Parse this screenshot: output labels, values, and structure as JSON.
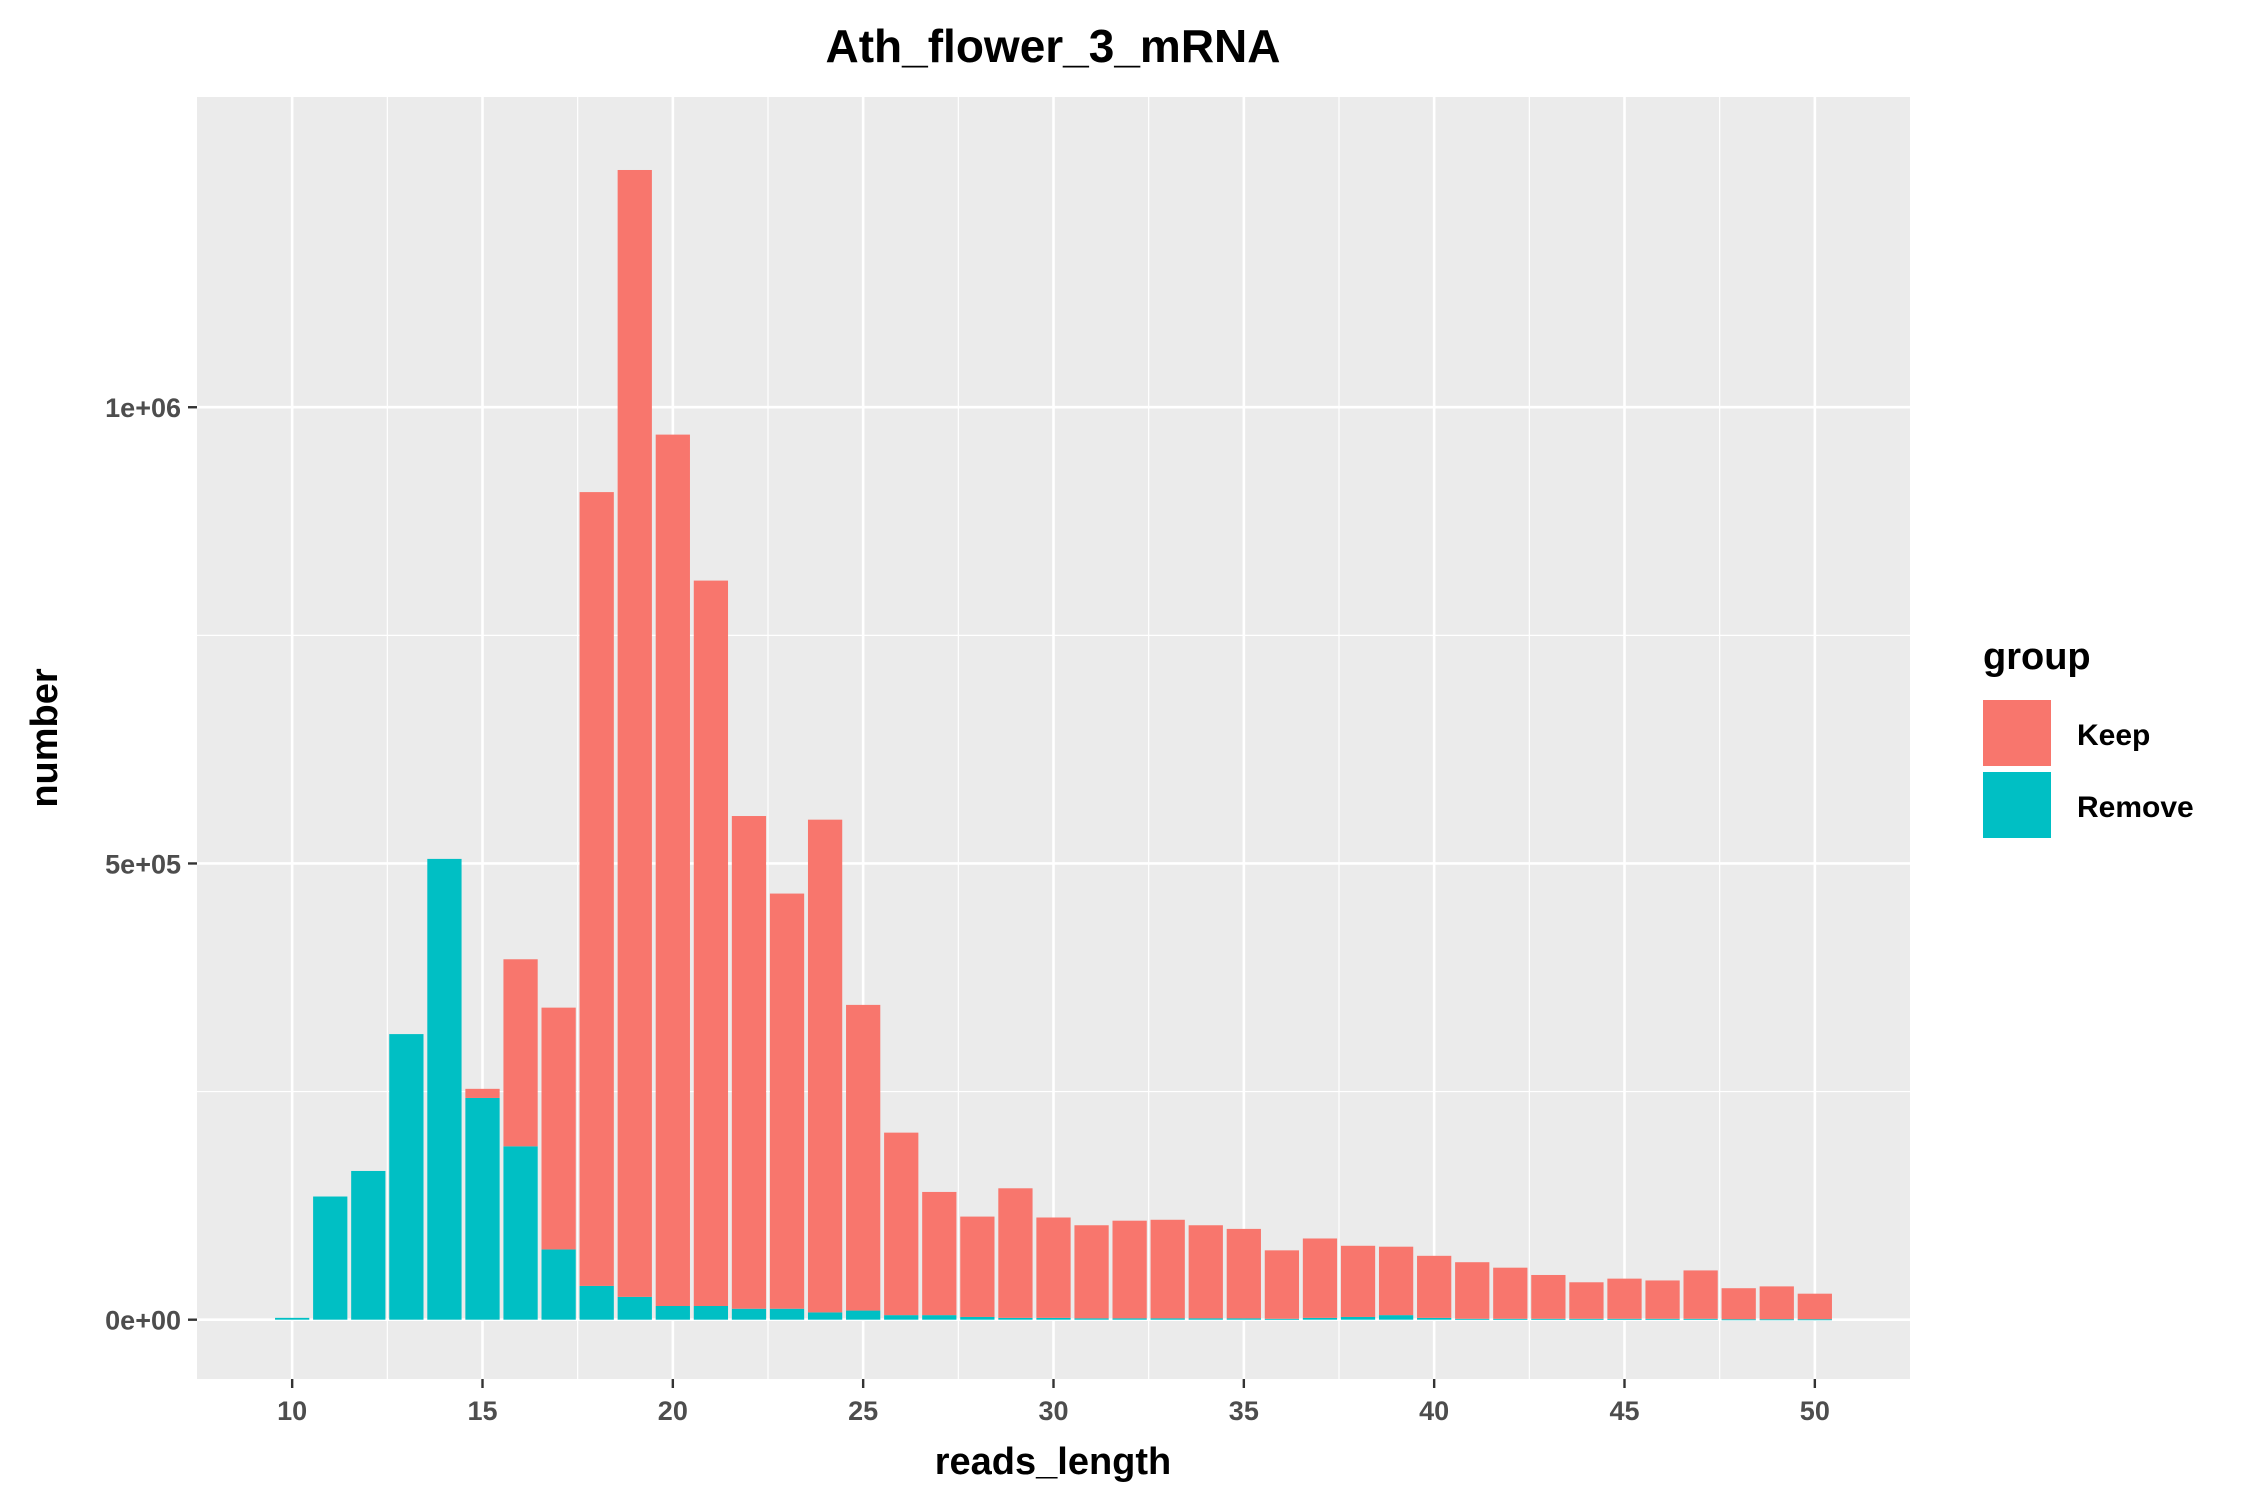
{
  "chart_data": {
    "type": "bar",
    "stacked": true,
    "title": "Ath_flower_3_mRNA",
    "xlabel": "reads_length",
    "ylabel": "number",
    "x": [
      10,
      11,
      12,
      13,
      14,
      15,
      16,
      17,
      18,
      19,
      20,
      21,
      22,
      23,
      24,
      25,
      26,
      27,
      28,
      29,
      30,
      31,
      32,
      33,
      34,
      35,
      36,
      37,
      38,
      39,
      40,
      41,
      42,
      43,
      44,
      45,
      46,
      47,
      48,
      49,
      50
    ],
    "xlim": [
      7.5,
      52.5
    ],
    "ylim": [
      -65000,
      1340000
    ],
    "x_ticks": [
      10,
      15,
      20,
      25,
      30,
      35,
      40,
      45,
      50
    ],
    "x_tick_labels": [
      "10",
      "15",
      "20",
      "25",
      "30",
      "35",
      "40",
      "45",
      "50"
    ],
    "y_ticks": [
      0,
      500000,
      1000000
    ],
    "y_tick_labels": [
      "0e+00",
      "5e+05",
      "1e+06"
    ],
    "series": [
      {
        "name": "Keep",
        "color": "#F8766D",
        "values": [
          0,
          0,
          0,
          0,
          0,
          10000,
          205000,
          265000,
          870000,
          1235000,
          955000,
          795000,
          540000,
          455000,
          540000,
          335000,
          200000,
          135000,
          110000,
          142000,
          110000,
          102000,
          107000,
          108000,
          102000,
          98000,
          75000,
          87000,
          78000,
          75000,
          68000,
          62000,
          56000,
          48000,
          40000,
          44000,
          42000,
          53000,
          34000,
          36000,
          28000
        ]
      },
      {
        "name": "Remove",
        "color": "#00BFC4",
        "values": [
          2000,
          135000,
          163000,
          313000,
          505000,
          243000,
          190000,
          77000,
          37000,
          25000,
          15000,
          15000,
          12000,
          12000,
          8000,
          10000,
          5000,
          5000,
          3000,
          2000,
          2000,
          1500,
          1500,
          1500,
          1500,
          1500,
          1000,
          2000,
          3000,
          5000,
          2000,
          1000,
          1000,
          1000,
          1000,
          1000,
          1000,
          1000,
          500,
          500,
          500
        ]
      }
    ],
    "legend": {
      "title": "group",
      "position": "right",
      "entries": [
        "Keep",
        "Remove"
      ]
    },
    "grid": true
  }
}
